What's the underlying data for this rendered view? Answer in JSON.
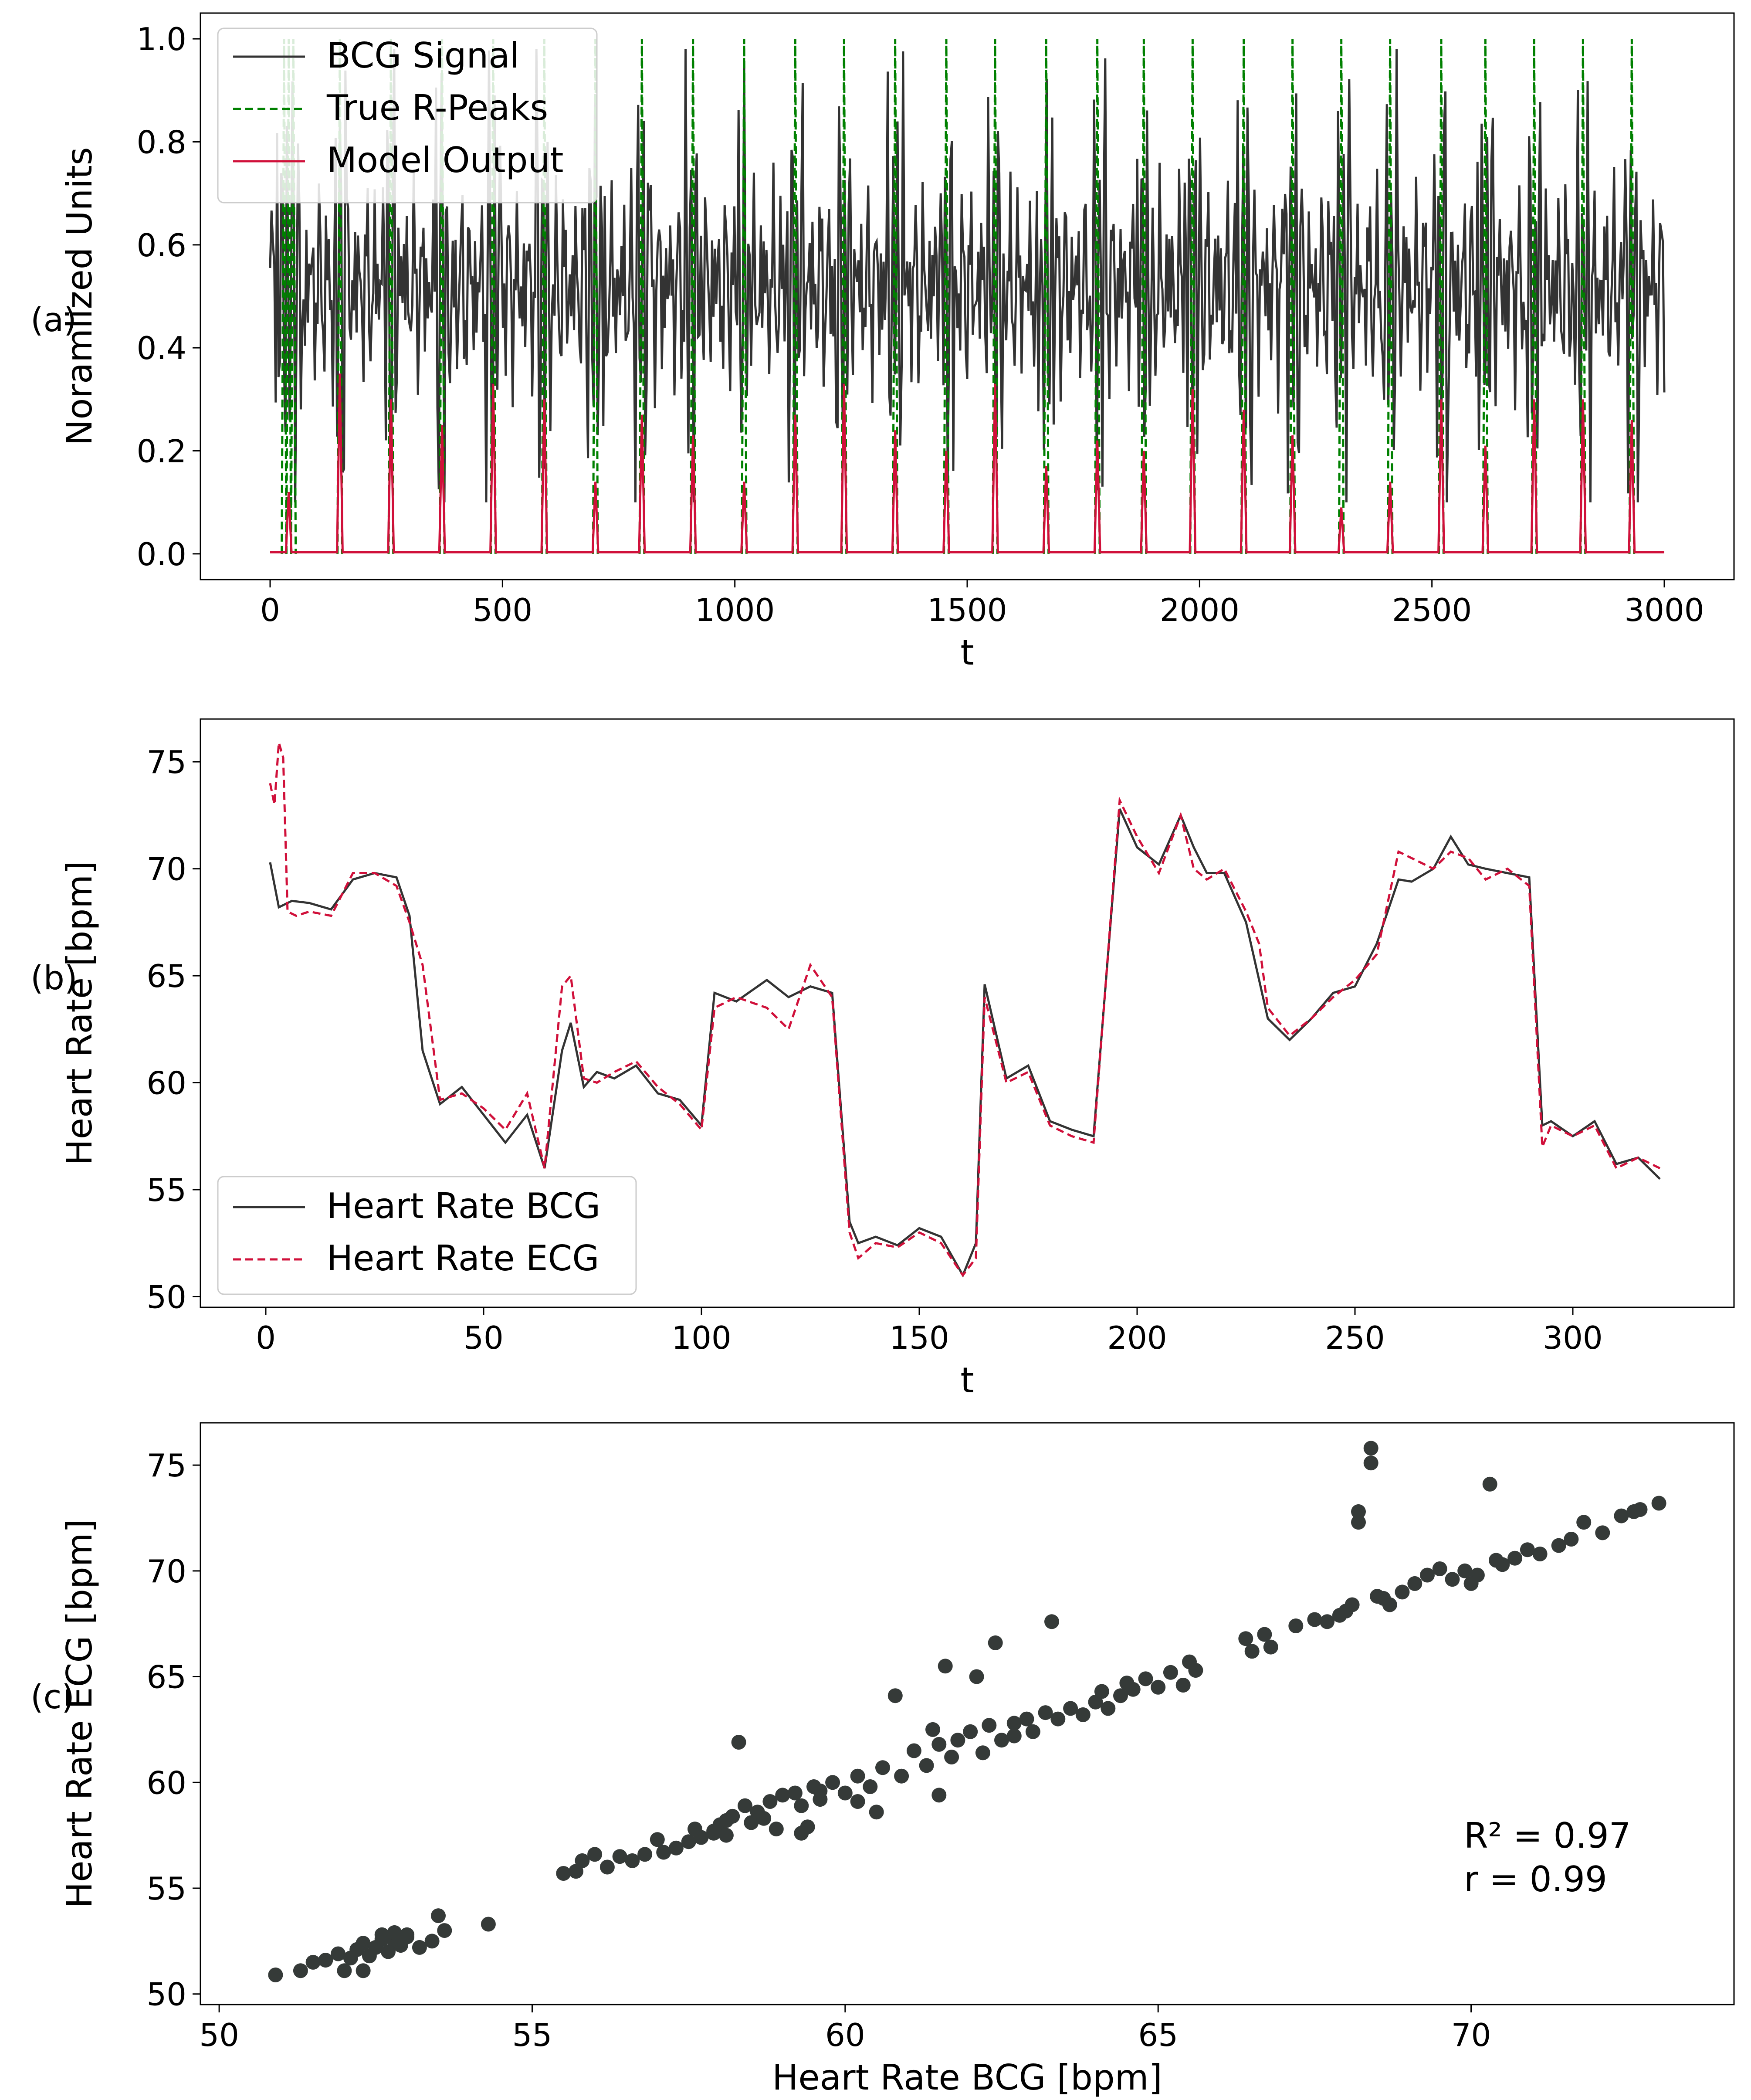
{
  "panels": {
    "a": "(a)",
    "b": "(b)",
    "c": "(c)"
  },
  "colors": {
    "bcg": "#333333",
    "rpeaks": "#008000",
    "model": "#d0103a",
    "ecg": "#d0103a",
    "scatter": "#353a38"
  },
  "chart_data": [
    {
      "id": "a",
      "type": "line",
      "xlabel": "t",
      "ylabel": "Noramlized Units",
      "xlim": [
        -150,
        3150
      ],
      "ylim": [
        -0.05,
        1.05
      ],
      "xticks": [
        0,
        500,
        1000,
        1500,
        2000,
        2500,
        3000
      ],
      "xtick_labels": [
        "0",
        "500",
        "1000",
        "1500",
        "2000",
        "2500",
        "3000"
      ],
      "yticks": [
        0.0,
        0.2,
        0.4,
        0.6,
        0.8,
        1.0
      ],
      "ytick_labels": [
        "0.0",
        "0.2",
        "0.4",
        "0.6",
        "0.8",
        "1.0"
      ],
      "legend": {
        "placement": "top-left",
        "entries": [
          "BCG Signal",
          "True R-Peaks",
          "Model Output"
        ]
      },
      "series": [
        {
          "name": "BCG Signal",
          "style": "solid",
          "description": "oscillating signal between ~0.1 and ~1.0 centered near 0.55, samples 0-3000"
        },
        {
          "name": "True R-Peaks",
          "style": "dashed",
          "peak_x": [
            30,
            40,
            50,
            150,
            260,
            370,
            480,
            590,
            700,
            800,
            910,
            1020,
            1130,
            1235,
            1345,
            1455,
            1560,
            1670,
            1780,
            1880,
            1985,
            2095,
            2200,
            2305,
            2410,
            2520,
            2615,
            2720,
            2825,
            2930
          ],
          "peak_y": 1.0
        },
        {
          "name": "Model Output",
          "style": "solid",
          "peak_x": [
            40,
            150,
            260,
            370,
            480,
            590,
            700,
            800,
            910,
            1020,
            1130,
            1235,
            1345,
            1455,
            1560,
            1670,
            1780,
            1880,
            1985,
            2095,
            2200,
            2305,
            2410,
            2520,
            2615,
            2720,
            2825,
            2930
          ],
          "peak_y": [
            0.12,
            0.35,
            0.3,
            0.25,
            0.33,
            0.3,
            0.14,
            0.27,
            0.23,
            0.14,
            0.27,
            0.33,
            0.24,
            0.2,
            0.33,
            0.17,
            0.22,
            0.2,
            0.32,
            0.28,
            0.23,
            0.09,
            0.14,
            0.3,
            0.21,
            0.3,
            0.3,
            0.26
          ]
        }
      ]
    },
    {
      "id": "b",
      "type": "line",
      "xlabel": "t",
      "ylabel": "Heart Rate [bpm]",
      "xlim": [
        -15,
        337
      ],
      "ylim": [
        49.5,
        77
      ],
      "xticks": [
        0,
        50,
        100,
        150,
        200,
        250,
        300
      ],
      "xtick_labels": [
        "0",
        "50",
        "100",
        "150",
        "200",
        "250",
        "300"
      ],
      "yticks": [
        50,
        55,
        60,
        65,
        70,
        75
      ],
      "ytick_labels": [
        "50",
        "55",
        "60",
        "65",
        "70",
        "75"
      ],
      "legend": {
        "placement": "bottom-left",
        "entries": [
          "Heart Rate BCG",
          "Heart Rate ECG"
        ]
      },
      "series": [
        {
          "name": "Heart Rate BCG",
          "style": "solid",
          "x": [
            1,
            3,
            6,
            10,
            15,
            20,
            25,
            30,
            33,
            36,
            40,
            45,
            50,
            55,
            60,
            64,
            68,
            70,
            73,
            76,
            80,
            85,
            90,
            95,
            100,
            103,
            108,
            115,
            120,
            125,
            130,
            134,
            136,
            140,
            145,
            150,
            155,
            160,
            163,
            165,
            170,
            175,
            180,
            185,
            190,
            196,
            200,
            205,
            210,
            213,
            216,
            220,
            225,
            230,
            235,
            240,
            245,
            250,
            255,
            260,
            263,
            268,
            272,
            276,
            280,
            285,
            290,
            293,
            295,
            300,
            305,
            310,
            315,
            320
          ],
          "y": [
            70.3,
            68.2,
            68.5,
            68.4,
            68.1,
            69.5,
            69.8,
            69.6,
            67.8,
            61.5,
            59.0,
            59.8,
            58.5,
            57.2,
            58.5,
            56.0,
            61.5,
            62.8,
            59.8,
            60.5,
            60.2,
            60.8,
            59.5,
            59.2,
            58.0,
            64.2,
            63.8,
            64.8,
            64.0,
            64.5,
            64.2,
            53.5,
            52.5,
            52.8,
            52.4,
            53.2,
            52.8,
            51.0,
            52.5,
            64.6,
            60.2,
            60.8,
            58.2,
            57.8,
            57.5,
            72.8,
            71.0,
            70.2,
            72.5,
            71.0,
            69.8,
            69.8,
            67.5,
            63.0,
            62.0,
            63.0,
            64.2,
            64.5,
            66.5,
            69.5,
            69.4,
            70.0,
            71.5,
            70.2,
            70.0,
            69.8,
            69.6,
            58.0,
            58.2,
            57.5,
            58.2,
            56.2,
            56.5,
            55.5
          ]
        },
        {
          "name": "Heart Rate ECG",
          "style": "dashed",
          "x": [
            1,
            2,
            3,
            4,
            5,
            7,
            10,
            15,
            20,
            25,
            30,
            33,
            36,
            40,
            45,
            50,
            55,
            60,
            64,
            68,
            70,
            73,
            76,
            80,
            85,
            90,
            95,
            100,
            103,
            108,
            115,
            120,
            125,
            130,
            134,
            136,
            140,
            145,
            150,
            155,
            160,
            163,
            165,
            170,
            175,
            180,
            185,
            190,
            196,
            200,
            205,
            210,
            213,
            216,
            220,
            225,
            228,
            230,
            235,
            240,
            245,
            250,
            255,
            260,
            263,
            268,
            272,
            276,
            280,
            285,
            290,
            293,
            295,
            300,
            305,
            310,
            315,
            320
          ],
          "y": [
            74.0,
            73.0,
            75.9,
            75.2,
            68.0,
            67.8,
            68.0,
            67.8,
            69.8,
            69.8,
            69.2,
            67.5,
            65.5,
            59.2,
            59.5,
            58.8,
            57.8,
            59.5,
            56.0,
            64.5,
            65.0,
            60.2,
            60.0,
            60.5,
            61.0,
            59.8,
            59.0,
            57.8,
            63.5,
            64.0,
            63.5,
            62.5,
            65.5,
            64.0,
            53.0,
            51.8,
            52.5,
            52.3,
            53.0,
            52.5,
            51.0,
            51.8,
            64.0,
            60.0,
            60.5,
            58.0,
            57.5,
            57.2,
            73.2,
            71.5,
            69.8,
            72.5,
            70.0,
            69.5,
            70.0,
            68.0,
            66.5,
            63.5,
            62.2,
            63.0,
            64.0,
            64.8,
            66.0,
            70.8,
            70.5,
            70.0,
            70.8,
            70.5,
            69.5,
            70.0,
            69.2,
            57.0,
            58.0,
            57.5,
            58.0,
            56.0,
            56.5,
            56.0
          ]
        }
      ]
    },
    {
      "id": "c",
      "type": "scatter",
      "xlabel": "Heart Rate BCG [bpm]",
      "ylabel": "Heart Rate ECG [bpm]",
      "xlim": [
        49.7,
        74.2
      ],
      "ylim": [
        49.5,
        77
      ],
      "xticks": [
        50,
        55,
        60,
        65,
        70
      ],
      "xtick_labels": [
        "50",
        "55",
        "60",
        "65",
        "70"
      ],
      "yticks": [
        50,
        55,
        60,
        65,
        70,
        75
      ],
      "ytick_labels": [
        "50",
        "55",
        "60",
        "65",
        "70",
        "75"
      ],
      "annotations": [
        "R² = 0.97",
        "r = 0.99"
      ],
      "points": [
        [
          50.9,
          50.9
        ],
        [
          51.3,
          51.1
        ],
        [
          51.5,
          51.5
        ],
        [
          51.7,
          51.6
        ],
        [
          51.9,
          51.9
        ],
        [
          52.0,
          51.1
        ],
        [
          52.1,
          51.7
        ],
        [
          52.2,
          52.1
        ],
        [
          52.3,
          52.4
        ],
        [
          52.4,
          51.8
        ],
        [
          52.5,
          52.2
        ],
        [
          52.6,
          52.6
        ],
        [
          52.7,
          52.0
        ],
        [
          52.8,
          52.5
        ],
        [
          52.9,
          52.3
        ],
        [
          53.0,
          52.8
        ],
        [
          53.2,
          52.2
        ],
        [
          53.4,
          52.5
        ],
        [
          53.6,
          53.0
        ],
        [
          53.5,
          53.7
        ],
        [
          54.3,
          53.3
        ],
        [
          52.8,
          52.9
        ],
        [
          52.3,
          51.1
        ],
        [
          52.6,
          52.8
        ],
        [
          53.0,
          52.7
        ],
        [
          55.5,
          55.7
        ],
        [
          55.7,
          55.8
        ],
        [
          55.8,
          56.3
        ],
        [
          56.0,
          56.6
        ],
        [
          56.2,
          56.0
        ],
        [
          56.4,
          56.5
        ],
        [
          56.6,
          56.3
        ],
        [
          56.8,
          56.6
        ],
        [
          57.0,
          57.3
        ],
        [
          57.1,
          56.7
        ],
        [
          57.3,
          56.9
        ],
        [
          57.5,
          57.2
        ],
        [
          57.6,
          57.8
        ],
        [
          57.7,
          57.4
        ],
        [
          57.9,
          57.6
        ],
        [
          58.0,
          58.0
        ],
        [
          58.1,
          57.5
        ],
        [
          58.2,
          58.4
        ],
        [
          58.3,
          61.9
        ],
        [
          58.4,
          58.9
        ],
        [
          58.5,
          58.1
        ],
        [
          58.6,
          58.6
        ],
        [
          58.7,
          58.3
        ],
        [
          58.8,
          59.1
        ],
        [
          58.9,
          57.8
        ],
        [
          59.0,
          59.4
        ],
        [
          59.2,
          59.5
        ],
        [
          59.3,
          58.9
        ],
        [
          59.5,
          59.8
        ],
        [
          59.6,
          59.2
        ],
        [
          59.8,
          60.0
        ],
        [
          60.0,
          59.5
        ],
        [
          60.2,
          60.3
        ],
        [
          60.4,
          59.8
        ],
        [
          60.6,
          60.7
        ],
        [
          60.8,
          64.1
        ],
        [
          60.9,
          60.3
        ],
        [
          61.1,
          61.5
        ],
        [
          61.3,
          60.8
        ],
        [
          61.4,
          62.5
        ],
        [
          61.5,
          61.8
        ],
        [
          61.6,
          65.5
        ],
        [
          61.7,
          61.2
        ],
        [
          61.8,
          62.0
        ],
        [
          62.0,
          62.4
        ],
        [
          62.1,
          65.0
        ],
        [
          62.2,
          61.4
        ],
        [
          62.3,
          62.7
        ],
        [
          62.4,
          66.6
        ],
        [
          62.5,
          62.0
        ],
        [
          62.7,
          62.8
        ],
        [
          62.9,
          63.0
        ],
        [
          63.0,
          62.4
        ],
        [
          63.2,
          63.3
        ],
        [
          63.3,
          67.6
        ],
        [
          63.4,
          63.0
        ],
        [
          63.6,
          63.5
        ],
        [
          63.8,
          63.2
        ],
        [
          64.0,
          63.8
        ],
        [
          64.1,
          64.3
        ],
        [
          64.2,
          63.5
        ],
        [
          64.4,
          64.1
        ],
        [
          64.5,
          64.7
        ],
        [
          64.6,
          64.4
        ],
        [
          64.8,
          64.9
        ],
        [
          65.0,
          64.5
        ],
        [
          65.2,
          65.2
        ],
        [
          65.4,
          64.6
        ],
        [
          65.5,
          65.7
        ],
        [
          65.6,
          65.3
        ],
        [
          59.3,
          57.6
        ],
        [
          59.4,
          57.9
        ],
        [
          60.5,
          58.6
        ],
        [
          61.5,
          59.4
        ],
        [
          57.9,
          57.7
        ],
        [
          58.1,
          58.2
        ],
        [
          59.6,
          59.6
        ],
        [
          60.2,
          59.1
        ],
        [
          62.7,
          62.2
        ],
        [
          66.4,
          66.8
        ],
        [
          66.5,
          66.2
        ],
        [
          66.7,
          67.0
        ],
        [
          66.8,
          66.4
        ],
        [
          67.2,
          67.4
        ],
        [
          67.5,
          67.7
        ],
        [
          67.7,
          67.6
        ],
        [
          67.9,
          67.9
        ],
        [
          68.0,
          68.1
        ],
        [
          68.2,
          72.8
        ],
        [
          68.2,
          72.3
        ],
        [
          68.4,
          75.8
        ],
        [
          68.4,
          75.1
        ],
        [
          68.5,
          68.8
        ],
        [
          68.7,
          68.4
        ],
        [
          68.9,
          69.0
        ],
        [
          69.1,
          69.4
        ],
        [
          69.3,
          69.8
        ],
        [
          69.5,
          70.1
        ],
        [
          69.7,
          69.6
        ],
        [
          69.9,
          70.0
        ],
        [
          70.1,
          69.8
        ],
        [
          70.3,
          74.1
        ],
        [
          70.5,
          70.3
        ],
        [
          70.7,
          70.6
        ],
        [
          70.9,
          71.0
        ],
        [
          71.1,
          70.8
        ],
        [
          71.4,
          71.2
        ],
        [
          71.6,
          71.5
        ],
        [
          71.8,
          72.3
        ],
        [
          72.1,
          71.8
        ],
        [
          72.4,
          72.6
        ],
        [
          72.7,
          72.9
        ],
        [
          73.0,
          73.2
        ],
        [
          72.6,
          72.8
        ],
        [
          68.1,
          68.4
        ],
        [
          68.6,
          68.7
        ],
        [
          70.0,
          69.4
        ],
        [
          70.4,
          70.5
        ]
      ]
    }
  ]
}
